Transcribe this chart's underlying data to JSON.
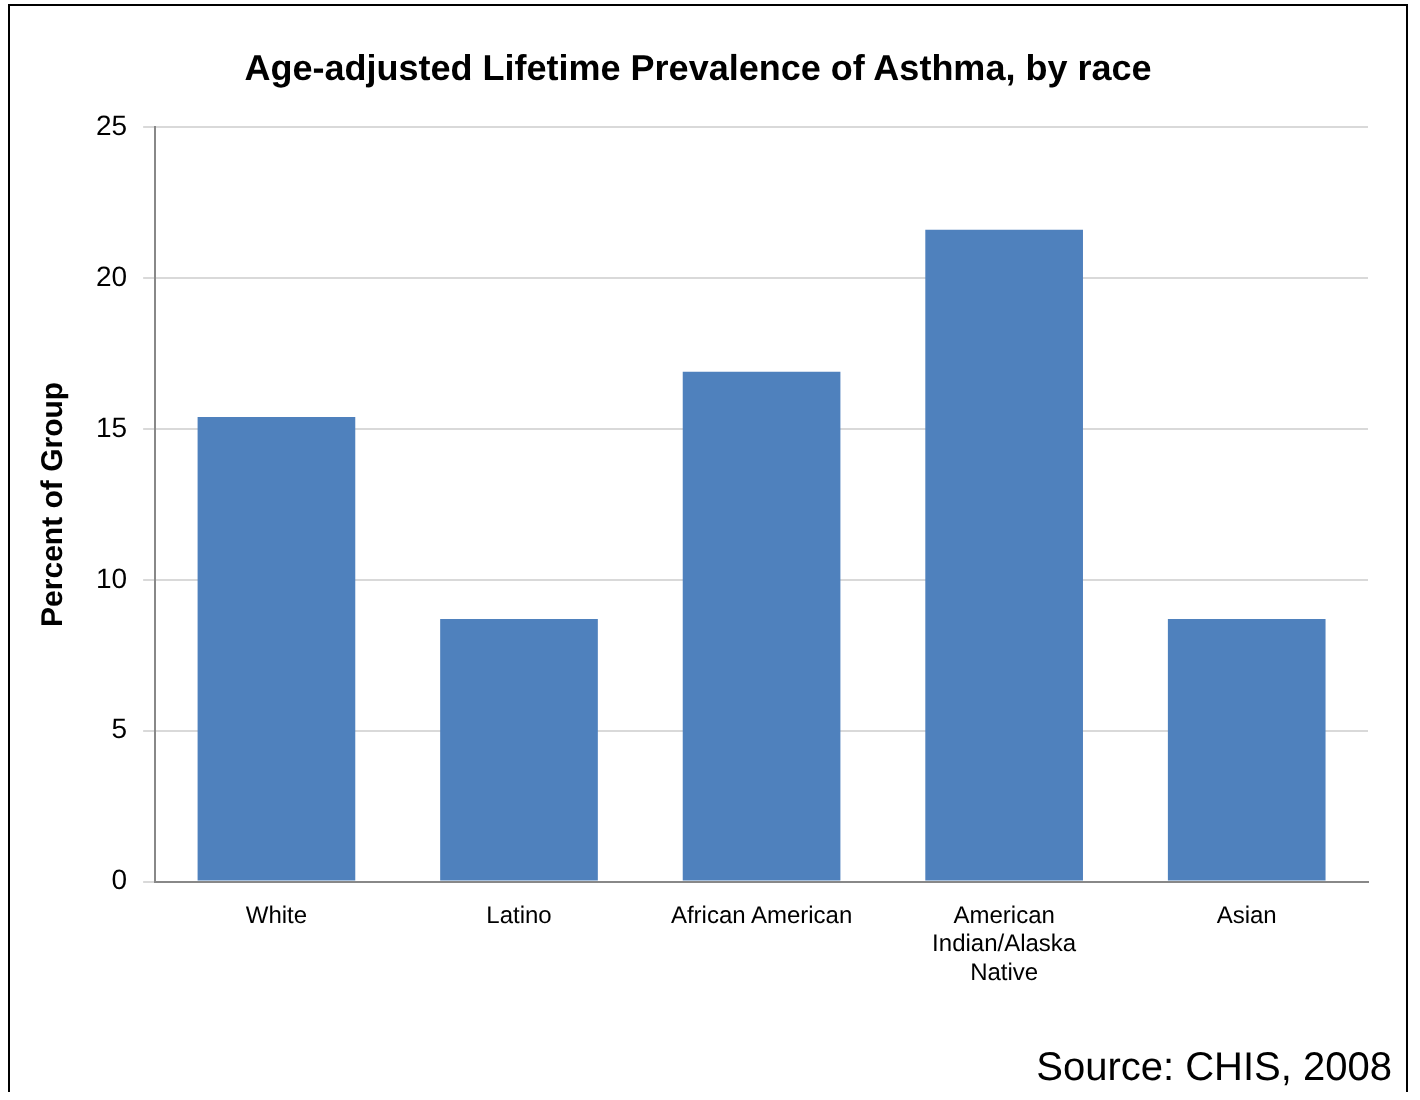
{
  "chart_data": {
    "type": "bar",
    "title": "Age-adjusted Lifetime Prevalence of Asthma, by race",
    "ylabel": "Percent of Group",
    "categories": [
      "White",
      "Latino",
      "African American",
      "American Indian/Alaska Native",
      "Asian"
    ],
    "values": [
      15.4,
      8.7,
      16.9,
      21.6,
      8.7
    ],
    "color": "#4f81bd",
    "ylim": [
      0,
      25
    ],
    "yticks": [
      0,
      5,
      10,
      15,
      20,
      25
    ],
    "grid": "y",
    "legend": false,
    "annotations": [
      "Source:  CHIS, 2008"
    ]
  }
}
